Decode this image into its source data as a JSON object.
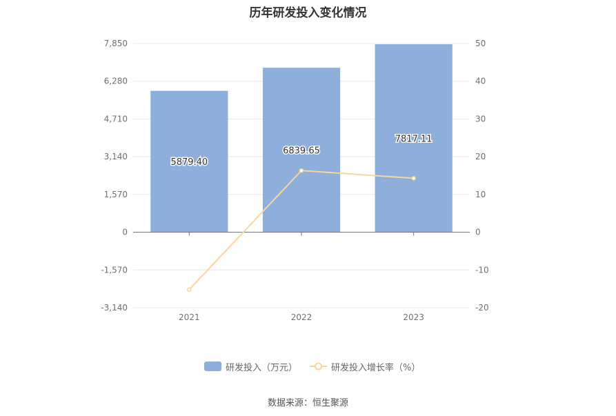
{
  "title": "历年研发投入变化情况",
  "source_text": "数据来源：恒生聚源",
  "colors": {
    "bar": "#8eaedc",
    "line": "#fad695",
    "grid": "#e6e8f0",
    "axis": "#6e7079",
    "text": "#6e7079"
  },
  "legend": [
    {
      "label": "研发投入（万元）",
      "type": "bar"
    },
    {
      "label": "研发投入增长率（%）",
      "type": "line"
    }
  ],
  "chart_data": {
    "type": "bar",
    "title": "历年研发投入变化情况",
    "categories": [
      "2021",
      "2022",
      "2023"
    ],
    "series": [
      {
        "name": "研发投入（万元）",
        "type": "bar",
        "axis": "left",
        "values": [
          5879.4,
          6839.65,
          7817.11
        ],
        "labels": [
          "5879.40",
          "6839.65",
          "7817.11"
        ]
      },
      {
        "name": "研发投入增长率（%）",
        "type": "line",
        "axis": "right",
        "values": [
          -15.2,
          16.33,
          14.29
        ]
      }
    ],
    "y_left": {
      "ylim": [
        -3140,
        7850
      ],
      "ticks": [
        7850,
        6280,
        4710,
        3140,
        1570,
        0,
        -1570,
        -3140
      ],
      "tick_labels": [
        "7,850",
        "6,280",
        "4,710",
        "3,140",
        "1,570",
        "0",
        "-1,570",
        "-3,140"
      ]
    },
    "y_right": {
      "ylim": [
        -20,
        50
      ],
      "ticks": [
        50,
        40,
        30,
        20,
        10,
        0,
        -10,
        -20
      ],
      "tick_labels": [
        "50",
        "40",
        "30",
        "20",
        "10",
        "0",
        "-10",
        "-20"
      ]
    },
    "grid": true,
    "legend_position": "bottom"
  }
}
